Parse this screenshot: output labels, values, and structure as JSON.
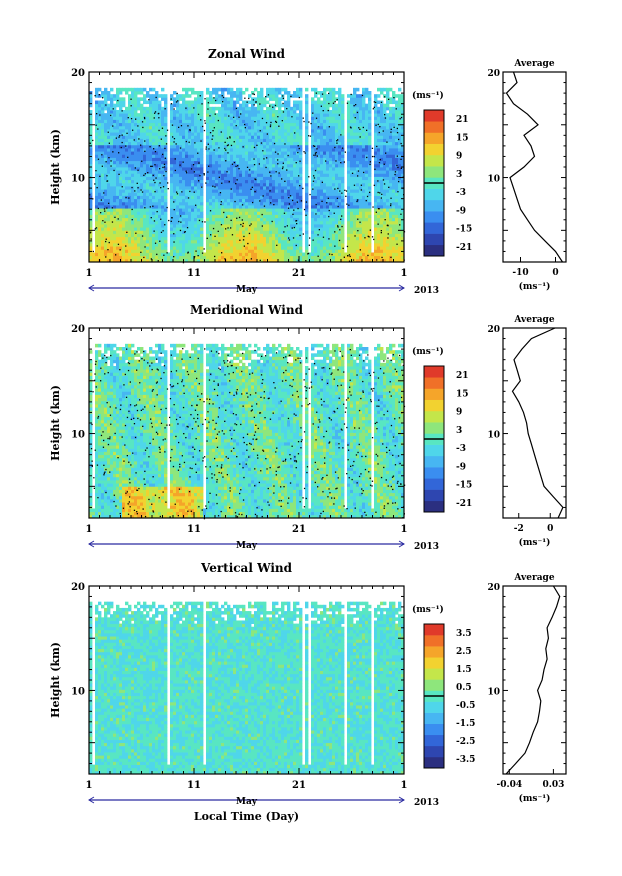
{
  "palette": [
    "#2b2f80",
    "#2e46b0",
    "#3266d8",
    "#3a8ef0",
    "#47b6f2",
    "#4fd6ea",
    "#58e6c2",
    "#8ee67c",
    "#c4e64a",
    "#f2d230",
    "#f5a52a",
    "#f07028",
    "#e03a2a"
  ],
  "chart_data": [
    {
      "id": "zonal",
      "type": "heatmap",
      "title": "Zonal Wind",
      "ylabel": "Height (km)",
      "xlabel": "",
      "x_ticks": [
        "1",
        "11",
        "21",
        "1"
      ],
      "x_range_days": [
        1,
        31
      ],
      "month_label": "May",
      "year_label": "2013",
      "ylim": [
        2,
        20
      ],
      "y_ticks": [
        "20",
        "10"
      ],
      "colorbar": {
        "unit": "(ms⁻¹)",
        "ticks": [
          "21",
          "15",
          "9",
          "3",
          "-3",
          "-9",
          "-15",
          "-21"
        ],
        "range": [
          -24,
          24
        ]
      },
      "profile": {
        "title": "Average",
        "xlabel": "(ms⁻¹)",
        "x_ticks": [
          "-10",
          "0"
        ],
        "xlim": [
          -15,
          3
        ],
        "heights": [
          2,
          3,
          4,
          5,
          6,
          7,
          8,
          9,
          10,
          11,
          12,
          13,
          14,
          15,
          16,
          17,
          18,
          19,
          20
        ],
        "values": [
          2,
          0,
          -3,
          -6,
          -8,
          -10,
          -11,
          -12,
          -13,
          -9,
          -6,
          -7,
          -9,
          -5,
          -8,
          -12,
          -14,
          -11,
          -12
        ]
      }
    },
    {
      "id": "meridional",
      "type": "heatmap",
      "title": "Meridional Wind",
      "ylabel": "Height (km)",
      "xlabel": "",
      "x_ticks": [
        "1",
        "11",
        "21",
        "1"
      ],
      "x_range_days": [
        1,
        31
      ],
      "month_label": "May",
      "year_label": "2013",
      "ylim": [
        2,
        20
      ],
      "y_ticks": [
        "20",
        "10"
      ],
      "colorbar": {
        "unit": "(ms⁻¹)",
        "ticks": [
          "21",
          "15",
          "9",
          "3",
          "-3",
          "-9",
          "-15",
          "-21"
        ],
        "range": [
          -24,
          24
        ]
      },
      "profile": {
        "title": "Average",
        "xlabel": "(ms⁻¹)",
        "x_ticks": [
          "-2",
          "0"
        ],
        "xlim": [
          -3,
          1
        ],
        "heights": [
          2,
          3,
          4,
          5,
          6,
          7,
          8,
          9,
          10,
          11,
          12,
          13,
          14,
          15,
          16,
          17,
          18,
          19,
          20
        ],
        "values": [
          0.5,
          0.8,
          0.2,
          -0.4,
          -0.6,
          -0.8,
          -1.0,
          -1.2,
          -1.4,
          -1.5,
          -1.7,
          -2.0,
          -2.4,
          -1.9,
          -2.1,
          -2.3,
          -1.8,
          -1.2,
          0.3
        ]
      }
    },
    {
      "id": "vertical",
      "type": "heatmap",
      "title": "Vertical Wind",
      "ylabel": "Height (km)",
      "xlabel": "Local Time (Day)",
      "x_ticks": [
        "1",
        "11",
        "21",
        "1"
      ],
      "x_range_days": [
        1,
        31
      ],
      "month_label": "May",
      "year_label": "2013",
      "ylim": [
        2,
        20
      ],
      "y_ticks": [
        "20",
        "10"
      ],
      "colorbar": {
        "unit": "(ms⁻¹)",
        "ticks": [
          "3.5",
          "2.5",
          "1.5",
          "0.5",
          "-0.5",
          "-1.5",
          "-2.5",
          "-3.5"
        ],
        "range": [
          -4,
          4
        ]
      },
      "profile": {
        "title": "Average",
        "xlabel": "(ms⁻¹)",
        "x_ticks": [
          "-0.04",
          "0.03"
        ],
        "xlim": [
          -0.05,
          0.05
        ],
        "heights": [
          2,
          3,
          4,
          5,
          6,
          7,
          8,
          9,
          10,
          11,
          12,
          13,
          14,
          15,
          16,
          17,
          18,
          19,
          20
        ],
        "values": [
          -0.045,
          -0.03,
          -0.015,
          -0.008,
          -0.002,
          0.005,
          0.008,
          0.01,
          0.005,
          0.012,
          0.015,
          0.02,
          0.018,
          0.022,
          0.02,
          0.028,
          0.035,
          0.04,
          0.03
        ]
      }
    }
  ]
}
